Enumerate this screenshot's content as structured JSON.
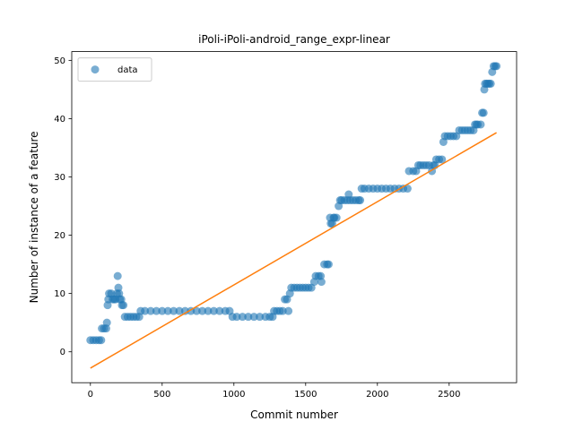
{
  "chart_data": {
    "type": "scatter",
    "title": "iPoli-iPoli-android_range_expr-linear",
    "xlabel": "Commit number",
    "ylabel": "Number of instance of a feature",
    "xlim": [
      -130,
      2970
    ],
    "ylim": [
      -5.3,
      51.5
    ],
    "xticks": [
      0,
      500,
      1000,
      1500,
      2000,
      2500
    ],
    "yticks": [
      0,
      10,
      20,
      30,
      40,
      50
    ],
    "grid": false,
    "legend": {
      "placement": "top-left",
      "entries": [
        "data"
      ]
    },
    "colors": {
      "data": "#1f77b4",
      "fit": "#ff7f0e"
    },
    "series": [
      {
        "name": "data",
        "kind": "scatter",
        "points": [
          [
            0,
            2
          ],
          [
            20,
            2
          ],
          [
            40,
            2
          ],
          [
            60,
            2
          ],
          [
            75,
            2
          ],
          [
            80,
            4
          ],
          [
            95,
            4
          ],
          [
            110,
            4
          ],
          [
            115,
            5
          ],
          [
            120,
            8
          ],
          [
            125,
            9
          ],
          [
            130,
            10
          ],
          [
            145,
            10
          ],
          [
            155,
            9
          ],
          [
            165,
            9
          ],
          [
            175,
            9
          ],
          [
            185,
            10
          ],
          [
            190,
            13
          ],
          [
            195,
            11
          ],
          [
            200,
            10
          ],
          [
            205,
            9
          ],
          [
            215,
            9
          ],
          [
            220,
            8
          ],
          [
            230,
            8
          ],
          [
            240,
            6
          ],
          [
            260,
            6
          ],
          [
            280,
            6
          ],
          [
            300,
            6
          ],
          [
            320,
            6
          ],
          [
            340,
            6
          ],
          [
            350,
            7
          ],
          [
            380,
            7
          ],
          [
            420,
            7
          ],
          [
            460,
            7
          ],
          [
            500,
            7
          ],
          [
            540,
            7
          ],
          [
            580,
            7
          ],
          [
            620,
            7
          ],
          [
            660,
            7
          ],
          [
            700,
            7
          ],
          [
            740,
            7
          ],
          [
            780,
            7
          ],
          [
            820,
            7
          ],
          [
            860,
            7
          ],
          [
            900,
            7
          ],
          [
            940,
            7
          ],
          [
            970,
            7
          ],
          [
            990,
            6
          ],
          [
            1020,
            6
          ],
          [
            1060,
            6
          ],
          [
            1100,
            6
          ],
          [
            1140,
            6
          ],
          [
            1180,
            6
          ],
          [
            1220,
            6
          ],
          [
            1250,
            6
          ],
          [
            1270,
            6
          ],
          [
            1280,
            7
          ],
          [
            1300,
            7
          ],
          [
            1320,
            7
          ],
          [
            1340,
            7
          ],
          [
            1355,
            9
          ],
          [
            1370,
            9
          ],
          [
            1380,
            7
          ],
          [
            1390,
            10
          ],
          [
            1400,
            11
          ],
          [
            1420,
            11
          ],
          [
            1440,
            11
          ],
          [
            1460,
            11
          ],
          [
            1480,
            11
          ],
          [
            1500,
            11
          ],
          [
            1520,
            11
          ],
          [
            1540,
            11
          ],
          [
            1560,
            12
          ],
          [
            1570,
            13
          ],
          [
            1590,
            13
          ],
          [
            1605,
            13
          ],
          [
            1610,
            12
          ],
          [
            1630,
            15
          ],
          [
            1650,
            15
          ],
          [
            1660,
            15
          ],
          [
            1670,
            23
          ],
          [
            1675,
            22
          ],
          [
            1685,
            22
          ],
          [
            1695,
            23
          ],
          [
            1700,
            23
          ],
          [
            1715,
            23
          ],
          [
            1730,
            25
          ],
          [
            1740,
            26
          ],
          [
            1750,
            26
          ],
          [
            1770,
            26
          ],
          [
            1790,
            26
          ],
          [
            1800,
            27
          ],
          [
            1810,
            26
          ],
          [
            1830,
            26
          ],
          [
            1850,
            26
          ],
          [
            1870,
            26
          ],
          [
            1880,
            26
          ],
          [
            1890,
            28
          ],
          [
            1910,
            28
          ],
          [
            1940,
            28
          ],
          [
            1970,
            28
          ],
          [
            2000,
            28
          ],
          [
            2030,
            28
          ],
          [
            2060,
            28
          ],
          [
            2090,
            28
          ],
          [
            2120,
            28
          ],
          [
            2150,
            28
          ],
          [
            2180,
            28
          ],
          [
            2210,
            28
          ],
          [
            2220,
            31
          ],
          [
            2250,
            31
          ],
          [
            2270,
            31
          ],
          [
            2285,
            32
          ],
          [
            2300,
            32
          ],
          [
            2320,
            32
          ],
          [
            2340,
            32
          ],
          [
            2360,
            32
          ],
          [
            2380,
            31
          ],
          [
            2390,
            32
          ],
          [
            2400,
            32
          ],
          [
            2410,
            33
          ],
          [
            2430,
            33
          ],
          [
            2450,
            33
          ],
          [
            2460,
            36
          ],
          [
            2470,
            37
          ],
          [
            2490,
            37
          ],
          [
            2510,
            37
          ],
          [
            2530,
            37
          ],
          [
            2550,
            37
          ],
          [
            2570,
            38
          ],
          [
            2590,
            38
          ],
          [
            2610,
            38
          ],
          [
            2630,
            38
          ],
          [
            2650,
            38
          ],
          [
            2670,
            38
          ],
          [
            2680,
            39
          ],
          [
            2690,
            39
          ],
          [
            2700,
            39
          ],
          [
            2720,
            39
          ],
          [
            2730,
            41
          ],
          [
            2740,
            41
          ],
          [
            2745,
            45
          ],
          [
            2750,
            46
          ],
          [
            2760,
            46
          ],
          [
            2770,
            46
          ],
          [
            2780,
            46
          ],
          [
            2790,
            46
          ],
          [
            2800,
            48
          ],
          [
            2810,
            49
          ],
          [
            2820,
            49
          ],
          [
            2830,
            49
          ]
        ]
      },
      {
        "kind": "line",
        "x": [
          0,
          2830
        ],
        "y": [
          -2.8,
          37.6
        ]
      }
    ]
  }
}
